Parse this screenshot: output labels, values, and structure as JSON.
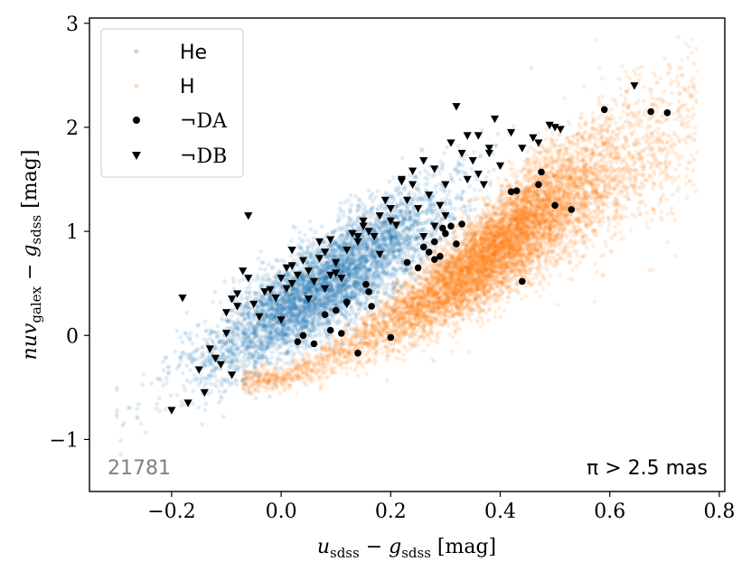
{
  "chart_data": {
    "type": "scatter",
    "xlabel": "u_sdss − g_sdss [mag]",
    "xlabel_parts": {
      "main1": "u",
      "sub1": "sdss",
      "mid": " − g",
      "sub2": "sdss",
      "tail": " [mag]"
    },
    "ylabel": "nuv_galex − g_sdss [mag]",
    "ylabel_parts": {
      "main1": "nuv",
      "sub1": "galex",
      "mid": " − g",
      "sub2": "sdss",
      "tail": " [mag]"
    },
    "xlim": [
      -0.35,
      0.81
    ],
    "ylim": [
      -1.5,
      3.05
    ],
    "xticks": [
      -0.2,
      0.0,
      0.2,
      0.4,
      0.6,
      0.8
    ],
    "xtick_labels": [
      "−0.2",
      "0.0",
      "0.2",
      "0.4",
      "0.6",
      "0.8"
    ],
    "yticks": [
      -1,
      0,
      1,
      2,
      3
    ],
    "ytick_labels": [
      "−1",
      "0",
      "1",
      "2",
      "3"
    ],
    "count_label": "21781",
    "annotation": "π > 2.5 mas",
    "legend": {
      "position": "top-left",
      "entries": [
        "He",
        "H",
        "¬DA",
        "¬DB"
      ]
    },
    "colors": {
      "he": "#1f77b4",
      "h": "#ff7f0e",
      "marker": "#000000",
      "count_label": "#808080"
    },
    "cloud_models": {
      "he": {
        "n": 5200,
        "x_range": [
          -0.3,
          0.48
        ],
        "y_at_x_intercept": 0.23,
        "y_slope": 3.25,
        "y_spread": 0.22,
        "y_ceiling": 3.0
      },
      "h": {
        "n": 8400,
        "x_range": [
          -0.07,
          0.76
        ],
        "y_base": -0.32,
        "y_slope": 3.35,
        "y_spread_min": 0.1,
        "y_spread_slope": 0.85
      }
    },
    "series": [
      {
        "name": "¬DA",
        "marker": "circle",
        "x": [
          0.03,
          0.06,
          0.09,
          0.11,
          0.12,
          0.14,
          0.155,
          0.16,
          0.165,
          0.2,
          0.23,
          0.25,
          0.26,
          0.27,
          0.28,
          0.28,
          0.29,
          0.295,
          0.3,
          0.31,
          0.32,
          0.33,
          0.42,
          0.43,
          0.44,
          0.47,
          0.475,
          0.5,
          0.53,
          0.59,
          0.675,
          0.705,
          0.04,
          0.1,
          0.08
        ],
        "y": [
          -0.06,
          -0.08,
          0.05,
          0.02,
          0.32,
          -0.17,
          0.49,
          0.42,
          0.28,
          -0.02,
          0.7,
          0.65,
          0.85,
          0.8,
          0.73,
          0.9,
          0.76,
          1.03,
          0.98,
          1.05,
          0.88,
          1.07,
          1.38,
          1.39,
          0.52,
          1.45,
          1.57,
          1.25,
          1.21,
          2.17,
          2.15,
          2.14,
          0.0,
          0.24,
          0.2
        ]
      },
      {
        "name": "¬DB",
        "marker": "triangle-down",
        "x": [
          -0.2,
          -0.18,
          -0.17,
          -0.15,
          -0.14,
          -0.13,
          -0.12,
          -0.11,
          -0.1,
          -0.1,
          -0.09,
          -0.09,
          -0.08,
          -0.08,
          -0.07,
          -0.06,
          -0.05,
          -0.04,
          -0.03,
          -0.02,
          -0.01,
          0.0,
          0.0,
          0.01,
          0.02,
          0.02,
          0.03,
          0.04,
          0.05,
          0.06,
          0.07,
          0.07,
          0.08,
          0.09,
          0.09,
          0.1,
          0.11,
          0.12,
          0.13,
          0.14,
          0.15,
          0.16,
          0.17,
          0.18,
          0.19,
          0.2,
          0.21,
          0.22,
          0.23,
          0.24,
          0.25,
          0.26,
          0.27,
          0.28,
          0.29,
          0.3,
          0.31,
          0.32,
          0.33,
          0.34,
          0.35,
          0.36,
          0.37,
          0.38,
          0.39,
          0.4,
          0.42,
          0.44,
          0.46,
          0.47,
          0.49,
          0.5,
          0.51,
          0.645,
          0.02,
          0.05,
          0.1,
          0.15,
          0.22,
          0.26,
          0.3,
          0.34,
          0.38,
          0.12,
          0.18,
          0.24,
          -0.06,
          0.01,
          0.08,
          0.14,
          0.2,
          0.28,
          0.36
        ],
        "y": [
          -0.72,
          0.36,
          -0.65,
          -0.33,
          -0.55,
          -0.13,
          -0.22,
          -0.28,
          0.02,
          0.22,
          0.35,
          -0.38,
          0.4,
          0.28,
          0.62,
          1.15,
          0.3,
          0.18,
          0.42,
          0.44,
          0.36,
          0.55,
          0.15,
          0.45,
          0.5,
          0.67,
          0.58,
          0.72,
          0.62,
          0.52,
          0.74,
          0.9,
          0.8,
          0.92,
          0.58,
          0.6,
          0.55,
          0.82,
          0.98,
          0.9,
          1.1,
          1.0,
          0.95,
          1.15,
          1.3,
          1.22,
          1.06,
          1.48,
          1.3,
          1.58,
          1.22,
          1.68,
          1.35,
          1.6,
          1.25,
          1.45,
          1.85,
          2.2,
          1.75,
          1.92,
          1.68,
          1.92,
          1.45,
          1.75,
          2.08,
          1.63,
          1.95,
          1.8,
          1.9,
          1.85,
          2.02,
          2.0,
          1.98,
          2.4,
          0.82,
          0.35,
          0.7,
          1.05,
          1.5,
          0.95,
          1.15,
          1.5,
          1.8,
          0.3,
          0.78,
          1.45,
          0.55,
          0.65,
          0.45,
          0.95,
          1.1,
          1.05,
          1.55
        ]
      }
    ]
  }
}
